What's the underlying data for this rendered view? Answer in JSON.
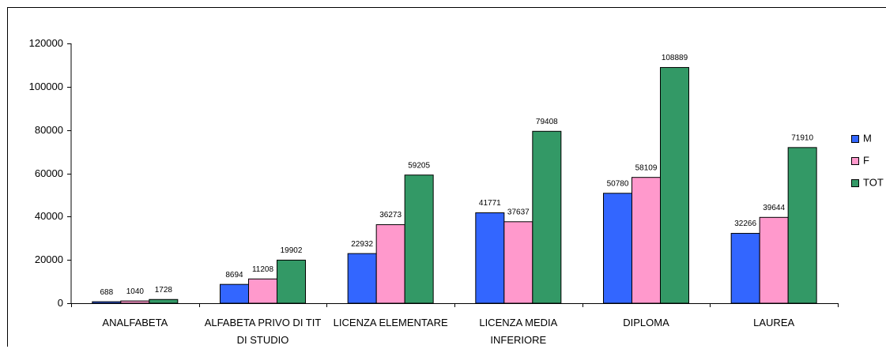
{
  "chart_data": {
    "type": "bar",
    "categories": [
      "ANALFABETA",
      "ALFABETA PRIVO DI TIT DI STUDIO",
      "LICENZA ELEMENTARE",
      "LICENZA MEDIA INFERIORE",
      "DIPLOMA",
      "LAUREA"
    ],
    "series": [
      {
        "name": "M",
        "color": "#3366ff",
        "values": [
          688,
          8694,
          22932,
          41771,
          50780,
          32266
        ]
      },
      {
        "name": "F",
        "color": "#ff99cc",
        "values": [
          1040,
          11208,
          36273,
          37637,
          58109,
          39644
        ]
      },
      {
        "name": "TOT",
        "color": "#339966",
        "values": [
          1728,
          19902,
          59205,
          79408,
          108889,
          71910
        ]
      }
    ],
    "ylim": [
      0,
      120000
    ],
    "yticks": [
      0,
      20000,
      40000,
      60000,
      80000,
      100000,
      120000
    ],
    "legend": "right"
  }
}
